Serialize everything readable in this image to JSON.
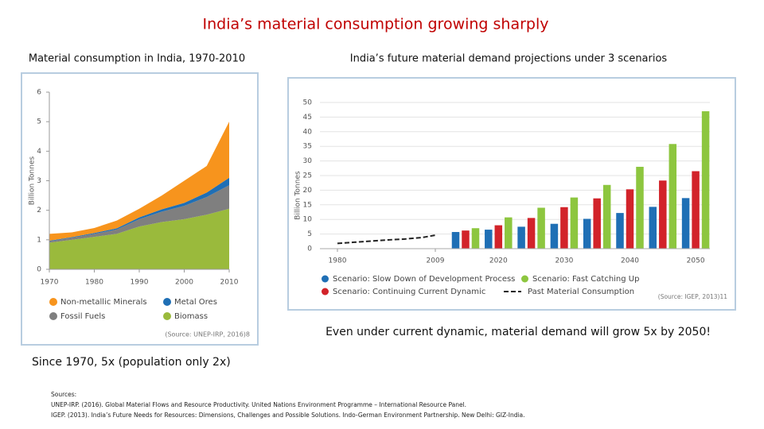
{
  "title": "India’s material consumption growing sharply",
  "caption_left": "Since 1970, 5x (population only 2x)",
  "caption_right": "Even under current dynamic, material demand will grow 5x by 2050!",
  "sources": [
    "Sources:",
    "UNEP-IRP. (2016). Global Material Flows and Resource Productivity. United Nations Environment Programme – International Resource Panel.",
    "IGEP. (2013). India’s Future Needs for Resources: Dimensions, Challenges and Possible Solutions. Indo-German Environment Partnership. New Delhi: GIZ-India."
  ],
  "chart_data": [
    {
      "type": "area",
      "title": "Material consumption in India, 1970-2010",
      "y_label": "Billion Tonnes",
      "source": "(Source: UNEP-IRP, 2016)8",
      "x": [
        1970,
        1975,
        1980,
        1985,
        1990,
        1995,
        2000,
        2005,
        2010
      ],
      "xlim": [
        1970,
        2010
      ],
      "xticks": [
        1970,
        1980,
        1990,
        2000,
        2010
      ],
      "ylim": [
        0,
        6
      ],
      "yticks": [
        0,
        1,
        2,
        3,
        4,
        5,
        6
      ],
      "stacked": true,
      "series": [
        {
          "name": "Biomass",
          "color": "#9aba3c",
          "values": [
            0.9,
            1.0,
            1.1,
            1.2,
            1.45,
            1.6,
            1.7,
            1.85,
            2.05
          ]
        },
        {
          "name": "Fossil Fuels",
          "color": "#7f7f7f",
          "values": [
            0.05,
            0.07,
            0.1,
            0.15,
            0.25,
            0.35,
            0.45,
            0.6,
            0.8
          ]
        },
        {
          "name": "Metal Ores",
          "color": "#1f6fb5",
          "values": [
            0.02,
            0.02,
            0.03,
            0.04,
            0.06,
            0.08,
            0.1,
            0.15,
            0.25
          ]
        },
        {
          "name": "Non-metallic Minerals",
          "color": "#f7941d",
          "values": [
            0.23,
            0.16,
            0.17,
            0.26,
            0.29,
            0.47,
            0.75,
            0.9,
            1.9
          ]
        }
      ]
    },
    {
      "type": "bar",
      "title": "India’s future material demand projections under 3 scenarios",
      "y_label": "Billion Tonnes",
      "source": "(Source: IGEP, 2013)11",
      "categories": [
        null,
        "2020",
        null,
        "2030",
        null,
        "2040",
        null,
        "2050"
      ],
      "xlim": [
        1980,
        2009
      ],
      "xticks": [
        1980,
        2009
      ],
      "ylim": [
        0,
        50
      ],
      "yticks": [
        0,
        5,
        10,
        15,
        20,
        25,
        30,
        35,
        40,
        45,
        50
      ],
      "series": [
        {
          "name": "Scenario: Slow Down of Development Process",
          "color": "#1f6fb5",
          "values": [
            5.7,
            6.5,
            7.5,
            8.5,
            10.2,
            12.2,
            14.3,
            17.3
          ]
        },
        {
          "name": "Scenario: Continuing Current Dynamic",
          "color": "#d2232a",
          "values": [
            6.2,
            8.0,
            10.5,
            14.2,
            17.2,
            20.3,
            23.3,
            26.5
          ]
        },
        {
          "name": "Scenario: Fast Catching Up",
          "color": "#8dc63f",
          "values": [
            7.0,
            10.7,
            14.0,
            17.5,
            21.8,
            28.0,
            35.8,
            47.0
          ]
        },
        {
          "name": "Past Material Consumption",
          "color": "#222222",
          "type": "line",
          "x": [
            1980,
            1985,
            1990,
            1995,
            2000,
            2005,
            2009
          ],
          "values": [
            1.8,
            2.2,
            2.6,
            3.0,
            3.3,
            3.8,
            4.6
          ]
        }
      ]
    }
  ]
}
